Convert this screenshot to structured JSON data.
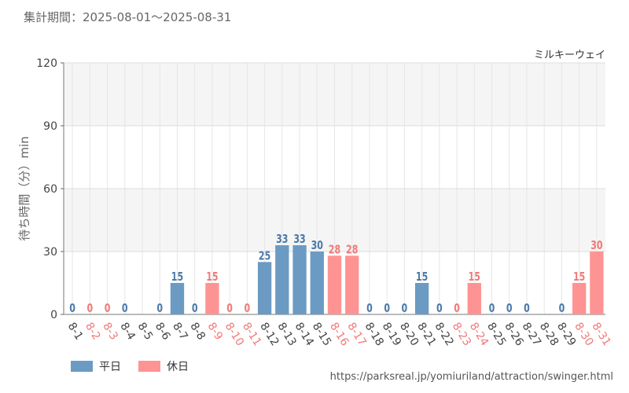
{
  "header": {
    "period_label": "集計期間：2025-08-01～2025-08-31"
  },
  "chart_data": {
    "type": "bar",
    "attraction": "ミルキーウェイ",
    "ylabel": "待ち時間（分）min",
    "ylim": [
      0,
      120
    ],
    "yticks": [
      0,
      30,
      60,
      90,
      120
    ],
    "grid": true,
    "legend_position": "bottom-left",
    "categories": [
      "8-1",
      "8-2",
      "8-3",
      "8-4",
      "8-5",
      "8-6",
      "8-7",
      "8-8",
      "8-9",
      "8-10",
      "8-11",
      "8-12",
      "8-13",
      "8-14",
      "8-15",
      "8-16",
      "8-17",
      "8-18",
      "8-19",
      "8-20",
      "8-21",
      "8-22",
      "8-23",
      "8-24",
      "8-25",
      "8-26",
      "8-27",
      "8-28",
      "8-29",
      "8-30",
      "8-31"
    ],
    "values": [
      0,
      0,
      0,
      0,
      null,
      0,
      15,
      0,
      15,
      0,
      0,
      25,
      33,
      33,
      30,
      28,
      28,
      0,
      0,
      0,
      15,
      0,
      0,
      15,
      0,
      0,
      0,
      null,
      0,
      15,
      30
    ],
    "day_type": [
      "weekday",
      "holiday",
      "holiday",
      "weekday",
      "weekday",
      "weekday",
      "weekday",
      "weekday",
      "holiday",
      "holiday",
      "holiday",
      "weekday",
      "weekday",
      "weekday",
      "weekday",
      "holiday",
      "holiday",
      "weekday",
      "weekday",
      "weekday",
      "weekday",
      "weekday",
      "holiday",
      "holiday",
      "weekday",
      "weekday",
      "weekday",
      "weekday",
      "weekday",
      "holiday",
      "holiday"
    ],
    "series": [
      {
        "key": "weekday",
        "name": "平日",
        "color": "#6b9bc3",
        "label_color": "#4a7aa8"
      },
      {
        "key": "holiday",
        "name": "休日",
        "color": "#fd9493",
        "label_color": "#f07a78"
      }
    ]
  },
  "source_url": "https://parksreal.jp/yomiuriland/attraction/swinger.html"
}
